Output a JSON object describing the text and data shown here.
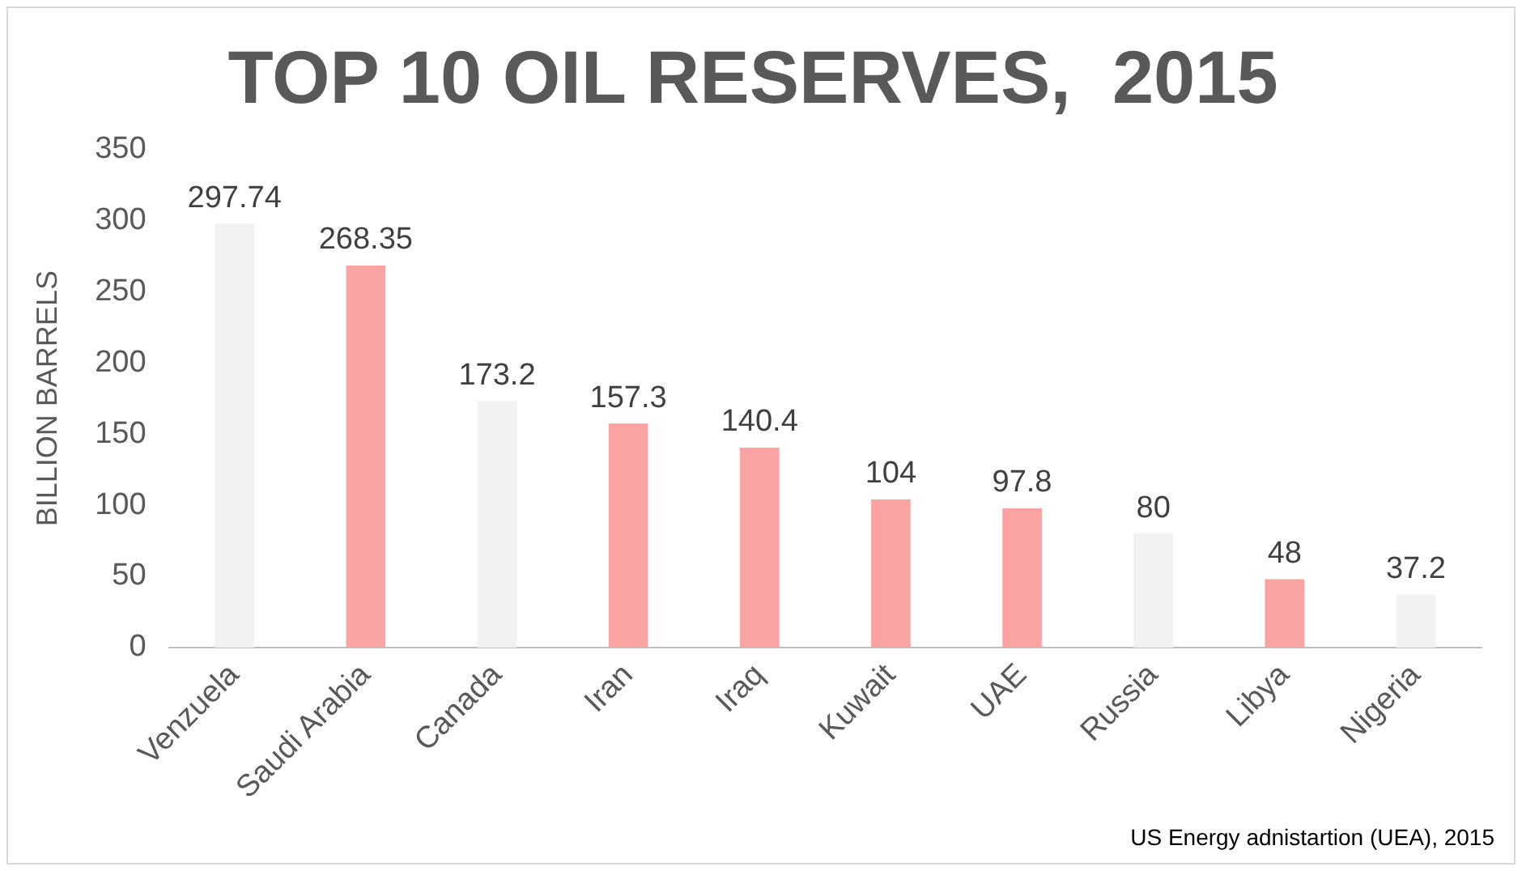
{
  "chart_data": {
    "type": "bar",
    "title": "TOP 10 OIL RESERVES,  2015",
    "ylabel": "BILLION BARRELS",
    "categories": [
      "Venzuela",
      "Saudi Arabia",
      "Canada",
      "Iran",
      "Iraq",
      "Kuwait",
      "UAE",
      "Russia",
      "Libya",
      "Nigeria"
    ],
    "values": [
      297.74,
      268.35,
      173.2,
      157.3,
      140.4,
      104,
      97.8,
      80,
      48,
      37.2
    ],
    "colors": [
      "#f2f2f2",
      "#f9a3a3",
      "#f2f2f2",
      "#f9a3a3",
      "#f9a3a3",
      "#f9a3a3",
      "#f9a3a3",
      "#f2f2f2",
      "#f9a3a3",
      "#f2f2f2"
    ],
    "ylim": [
      0,
      350
    ],
    "yticks": [
      0,
      50,
      100,
      150,
      200,
      250,
      300,
      350
    ],
    "grid": false,
    "legend": false,
    "data_labels": true,
    "annotations": [
      "US Energy adnistartion (UEA), 2015"
    ]
  }
}
